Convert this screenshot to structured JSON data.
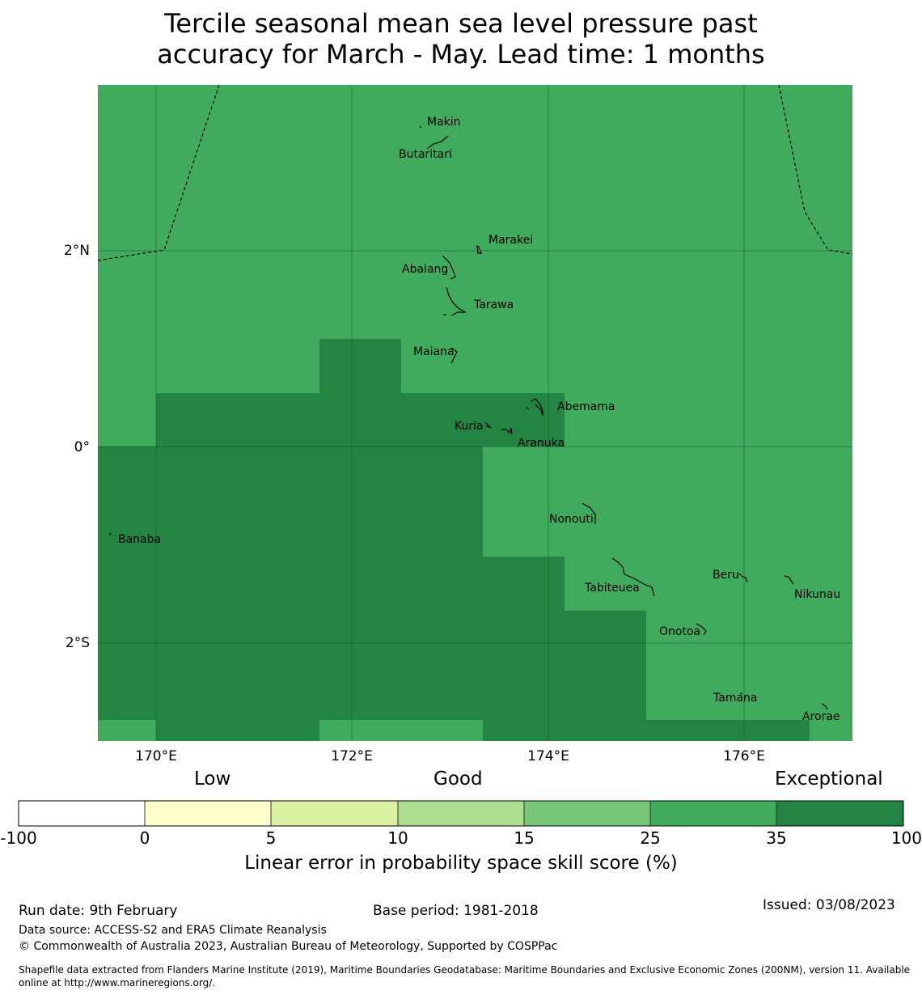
{
  "title_line1": "Tercile seasonal mean sea level pressure past",
  "title_line2": "accuracy for March - May. Lead time: 1 months",
  "colors": {
    "skill_25_35": "#41ab5d",
    "skill_35_100": "#238443",
    "grid": "#1a5c2e",
    "boundary": "#000000"
  },
  "axes": {
    "lon_labels": [
      "170°E",
      "172°E",
      "174°E",
      "176°E"
    ],
    "lat_labels": [
      "2°N",
      "0°",
      "2°S"
    ]
  },
  "islands": [
    {
      "name": "Makin"
    },
    {
      "name": "Butaritari"
    },
    {
      "name": "Marakei"
    },
    {
      "name": "Abaiang"
    },
    {
      "name": "Tarawa"
    },
    {
      "name": "Maiana"
    },
    {
      "name": "Abemama"
    },
    {
      "name": "Kuria"
    },
    {
      "name": "Aranuka"
    },
    {
      "name": "Banaba"
    },
    {
      "name": "Nonouti"
    },
    {
      "name": "Tabiteuea"
    },
    {
      "name": "Beru"
    },
    {
      "name": "Nikunau"
    },
    {
      "name": "Onotoa"
    },
    {
      "name": "Tamana"
    },
    {
      "name": "Arorae"
    }
  ],
  "legend": {
    "categories": [
      "Low",
      "Good",
      "Exceptional"
    ],
    "bins": [
      {
        "from": "-100",
        "to": "0",
        "color": "#ffffff"
      },
      {
        "from": "0",
        "to": "5",
        "color": "#ffffcc"
      },
      {
        "from": "5",
        "to": "10",
        "color": "#d9f0a3"
      },
      {
        "from": "10",
        "to": "15",
        "color": "#addd8e"
      },
      {
        "from": "15",
        "to": "25",
        "color": "#78c679"
      },
      {
        "from": "25",
        "to": "35",
        "color": "#41ab5d"
      },
      {
        "from": "35",
        "to": "100",
        "color": "#238443"
      }
    ],
    "ticks": [
      "-100",
      "0",
      "5",
      "10",
      "15",
      "25",
      "35",
      "100"
    ],
    "title": "Linear error in probability space skill score (%)"
  },
  "footer": {
    "run_date": "Run date: 9th February",
    "base_period": "Base period: 1981-2018",
    "issued": "Issued: 03/08/2023",
    "data_source": "Data source: ACCESS-S2 and ERA5 Climate Reanalysis",
    "copyright": "© Commonwealth of Australia 2023, Australian Bureau of Meteorology, Supported by COSPPac",
    "shapefile_line1": "Shapefile data extracted from Flanders Marine Institute (2019), Maritime Boundaries Geodatabase: Maritime Boundaries and Exclusive Economic Zones (200NM), version 11. Available",
    "shapefile_line2": "online at http://www.marineregions.org/."
  }
}
